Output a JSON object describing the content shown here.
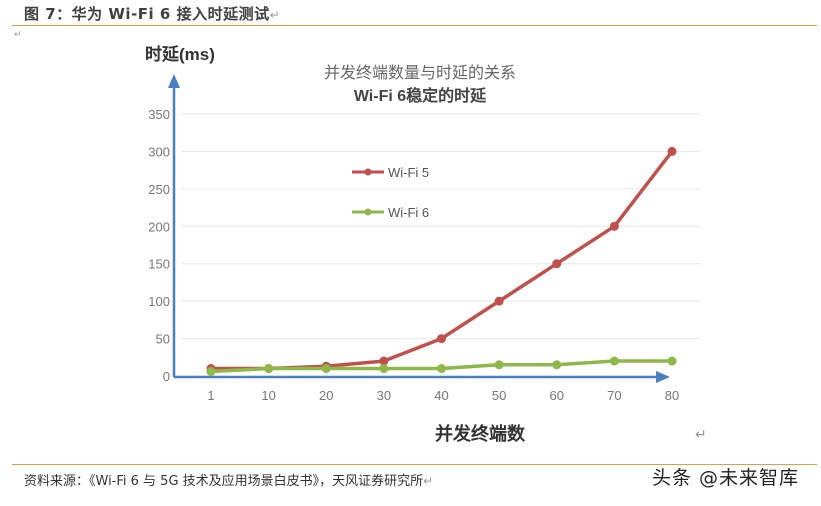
{
  "figure": {
    "title": "图 7：华为 Wi-Fi 6 接入时延测试",
    "return_mark": "↵"
  },
  "source": {
    "text": "资料来源：《Wi-Fi 6 与 5G 技术及应用场景白皮书》，天风证券研究所"
  },
  "watermark": {
    "text": "头条 @未来智库"
  },
  "colors": {
    "rule": "#e39a4a",
    "axis": "#4a7fc1",
    "wifi5": "#c0504d",
    "wifi6": "#8fb84a",
    "grid": "#e6e6e6"
  },
  "chart_data": {
    "type": "line",
    "title": "并发终端数量与时延的关系",
    "subtitle": "Wi-Fi 6稳定的时延",
    "xlabel": "并发终端数",
    "ylabel": "时延(ms)",
    "categories": [
      "1",
      "10",
      "20",
      "30",
      "40",
      "50",
      "60",
      "70",
      "80"
    ],
    "yticks": [
      "0",
      "50",
      "100",
      "150",
      "200",
      "250",
      "300",
      "350"
    ],
    "ylim": [
      0,
      350
    ],
    "grid": true,
    "legend_position": "inside-upper-left",
    "series": [
      {
        "name": "Wi-Fi 5",
        "color": "#c0504d",
        "values": [
          10,
          10,
          13,
          20,
          50,
          100,
          150,
          200,
          300
        ]
      },
      {
        "name": "Wi-Fi 6",
        "color": "#8fb84a",
        "values": [
          6,
          10,
          10,
          10,
          10,
          15,
          15,
          20,
          20
        ]
      }
    ]
  }
}
